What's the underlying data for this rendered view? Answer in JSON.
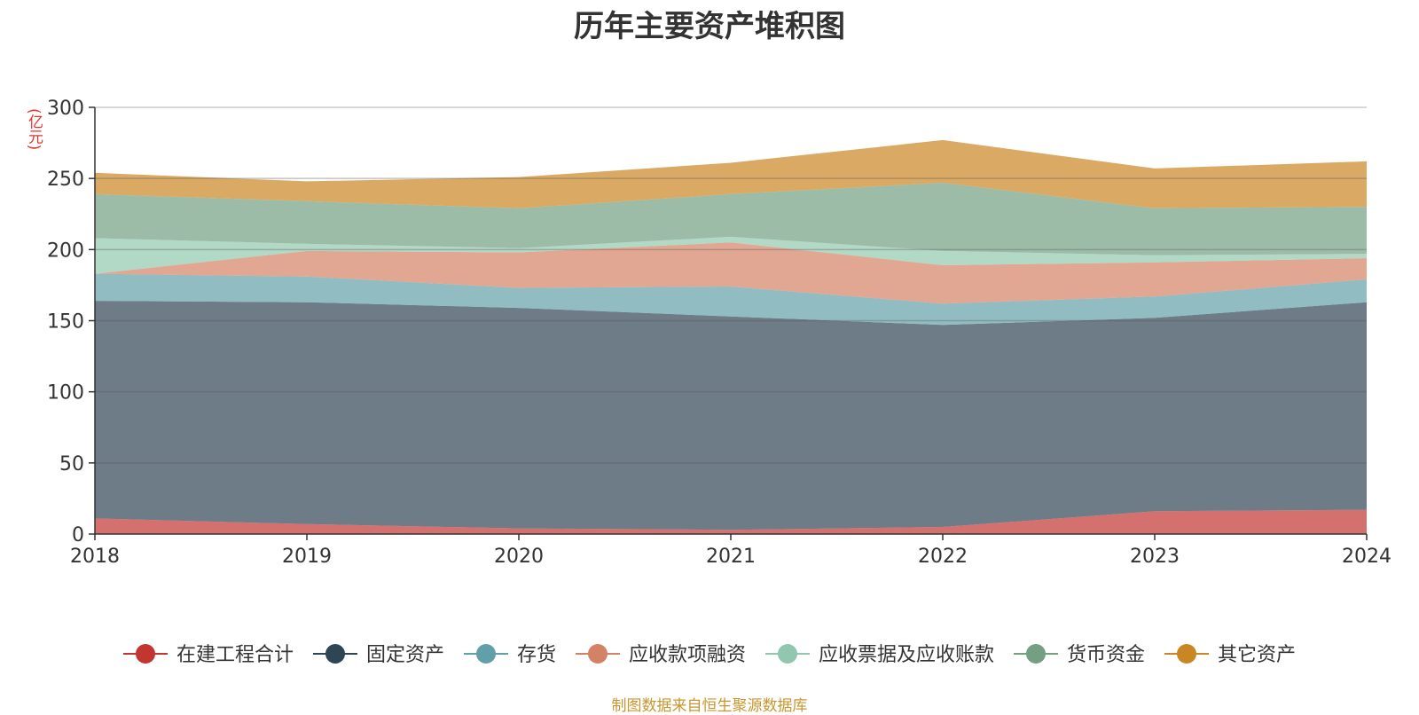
{
  "chart_data": {
    "type": "area",
    "stacked": true,
    "title": "历年主要资产堆积图",
    "ylabel": "(亿元)",
    "xlabel": "",
    "x": [
      "2018",
      "2019",
      "2020",
      "2021",
      "2022",
      "2023",
      "2024"
    ],
    "ylim": [
      0,
      300
    ],
    "yticks": [
      0,
      50,
      100,
      150,
      200,
      250,
      300
    ],
    "grid": true,
    "legend_position": "bottom",
    "series": [
      {
        "name": "在建工程合计",
        "color": "#c23531",
        "values": [
          11,
          7,
          4,
          3,
          5,
          16,
          17
        ]
      },
      {
        "name": "固定资产",
        "color": "#2f4554",
        "values": [
          153,
          156,
          155,
          150,
          142,
          136,
          146
        ]
      },
      {
        "name": "存货",
        "color": "#61a0a8",
        "values": [
          19,
          18,
          14,
          21,
          15,
          15,
          16
        ]
      },
      {
        "name": "应收款项融资",
        "color": "#d48265",
        "values": [
          0,
          18,
          25,
          31,
          27,
          24,
          15
        ]
      },
      {
        "name": "应收票据及应收账款",
        "color": "#91c7ae",
        "values": [
          25,
          5,
          3,
          4,
          10,
          5,
          3
        ]
      },
      {
        "name": "货币资金",
        "color": "#749f83",
        "values": [
          31,
          30,
          28,
          30,
          48,
          33,
          33
        ]
      },
      {
        "name": "其它资产",
        "color": "#ca8622",
        "values": [
          15,
          14,
          22,
          22,
          30,
          28,
          32
        ]
      }
    ]
  },
  "footer": "制图数据来自恒生聚源数据库"
}
